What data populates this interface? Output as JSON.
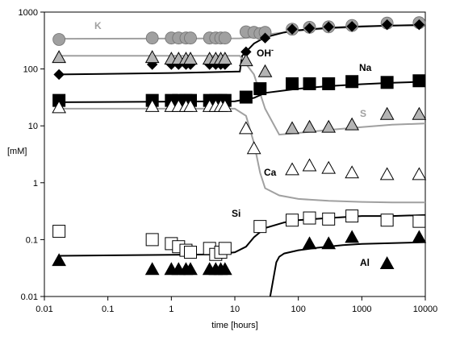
{
  "chart_data": {
    "type": "scatter",
    "title": "",
    "xlabel": "time [hours]",
    "ylabel": "[mM]",
    "xscale": "log",
    "yscale": "log",
    "xlim": [
      0.01,
      10000
    ],
    "ylim": [
      0.01,
      1000
    ],
    "x_tick_labels": [
      "0.01",
      "0.1",
      "1",
      "10",
      "100",
      "1000",
      "10000"
    ],
    "y_tick_labels": [
      "0.01",
      "0.1",
      "1",
      "10",
      "100",
      "1000"
    ],
    "grid": false,
    "legend": "none",
    "series": [
      {
        "name": "K",
        "label": "K",
        "color": "#a0a0a0",
        "marker": "circle",
        "fill": "#a0a0a0",
        "x": [
          0.017,
          0.5,
          1,
          1.3,
          1.7,
          2,
          4,
          5,
          6,
          7,
          15,
          20,
          25,
          30,
          80,
          150,
          300,
          700,
          2500,
          8000
        ],
        "y": [
          330,
          350,
          350,
          350,
          350,
          350,
          350,
          350,
          350,
          350,
          450,
          440,
          420,
          440,
          500,
          540,
          550,
          580,
          640,
          650
        ],
        "line": {
          "x": [
            0.017,
            12,
            20,
            30,
            60,
            100,
            200,
            500,
            1000,
            2000,
            5000,
            10000
          ],
          "y": [
            340,
            345,
            360,
            400,
            440,
            470,
            500,
            530,
            550,
            570,
            590,
            600
          ],
          "color": "#a0a0a0"
        }
      },
      {
        "name": "OH-",
        "label": "OH",
        "label_sup": "-",
        "color": "#000000",
        "marker": "diamond",
        "fill": "#000000",
        "x": [
          0.017,
          0.5,
          1,
          1.3,
          1.7,
          2,
          4,
          5,
          6,
          7,
          15,
          30,
          80,
          150,
          300,
          700,
          2500,
          8000
        ],
        "y": [
          80,
          120,
          120,
          120,
          120,
          120,
          120,
          120,
          120,
          120,
          200,
          350,
          500,
          520,
          550,
          560,
          600,
          600
        ],
        "line": {
          "x": [
            0.017,
            1,
            12,
            13,
            20,
            30,
            60,
            100,
            300,
            1000,
            3000,
            10000
          ],
          "y": [
            80,
            85,
            90,
            170,
            280,
            360,
            440,
            480,
            530,
            560,
            580,
            590
          ],
          "color": "#000000"
        }
      },
      {
        "name": "S",
        "label": "S",
        "color": "#a0a0a0",
        "marker": "triangle",
        "fill": "#b4b4b4",
        "x": [
          0.017,
          0.5,
          1,
          1.3,
          1.7,
          2,
          4,
          5,
          6,
          7,
          15,
          30,
          80,
          150,
          300,
          700,
          2500,
          8000
        ],
        "y": [
          160,
          160,
          150,
          150,
          150,
          150,
          150,
          150,
          150,
          150,
          140,
          90,
          9,
          9.5,
          9.5,
          10.5,
          16,
          16
        ],
        "line": {
          "x": [
            0.017,
            12,
            20,
            30,
            50,
            100,
            300,
            1000,
            3000,
            10000
          ],
          "y": [
            170,
            170,
            80,
            20,
            7,
            7.5,
            8.5,
            9.5,
            10.5,
            11
          ],
          "color": "#a0a0a0"
        }
      },
      {
        "name": "Na",
        "label": "Na",
        "color": "#000000",
        "marker": "square",
        "fill": "#000000",
        "x": [
          0.017,
          0.5,
          1,
          1.3,
          1.7,
          2,
          4,
          5,
          6,
          7,
          15,
          25,
          80,
          150,
          300,
          700,
          2500,
          8000
        ],
        "y": [
          28,
          28,
          28,
          28,
          28,
          28,
          28,
          28,
          28,
          28,
          32,
          45,
          55,
          55,
          55,
          60,
          58,
          62
        ],
        "line": {
          "x": [
            0.017,
            10,
            20,
            30,
            100,
            300,
            1000,
            3000,
            10000
          ],
          "y": [
            26,
            27,
            31,
            38,
            45,
            50,
            54,
            57,
            60
          ],
          "color": "#000000"
        }
      },
      {
        "name": "Ca",
        "label": "Ca",
        "color": "#a0a0a0",
        "marker": "triangle",
        "fill": "#ffffff",
        "x": [
          0.017,
          0.5,
          1,
          1.3,
          1.7,
          2,
          4,
          5,
          6,
          7,
          15,
          20,
          80,
          150,
          300,
          700,
          2500,
          8000
        ],
        "y": [
          21,
          22,
          22,
          22,
          22,
          22,
          22,
          22,
          22,
          22,
          9,
          4,
          1.7,
          2,
          1.8,
          1.5,
          1.4,
          1.4
        ],
        "line": {
          "x": [
            0.017,
            10,
            15,
            20,
            25,
            30,
            50,
            100,
            300,
            1000,
            3000,
            10000
          ],
          "y": [
            20,
            20,
            15,
            5,
            1.5,
            0.8,
            0.6,
            0.52,
            0.48,
            0.46,
            0.45,
            0.45
          ],
          "color": "#a0a0a0"
        }
      },
      {
        "name": "Si",
        "label": "Si",
        "color": "#000000",
        "marker": "square",
        "fill": "#ffffff",
        "x": [
          0.017,
          0.5,
          1,
          1.3,
          1.7,
          2,
          4,
          5,
          6,
          7,
          25,
          80,
          150,
          300,
          700,
          2500,
          8000
        ],
        "y": [
          0.14,
          0.1,
          0.085,
          0.075,
          0.065,
          0.06,
          0.07,
          0.055,
          0.06,
          0.07,
          0.17,
          0.22,
          0.24,
          0.23,
          0.26,
          0.22,
          0.21
        ],
        "line": {
          "x": [
            0.017,
            5,
            10,
            15,
            20,
            30,
            60,
            100,
            300,
            1000,
            3000,
            10000
          ],
          "y": [
            0.052,
            0.055,
            0.06,
            0.075,
            0.11,
            0.16,
            0.2,
            0.22,
            0.24,
            0.26,
            0.26,
            0.27
          ],
          "color": "#000000"
        }
      },
      {
        "name": "Al",
        "label": "Al",
        "color": "#000000",
        "marker": "triangle",
        "fill": "#000000",
        "x": [
          0.017,
          0.5,
          1,
          1.3,
          1.7,
          2,
          4,
          5,
          6,
          7,
          150,
          300,
          700,
          2500,
          8000
        ],
        "y": [
          0.043,
          0.03,
          0.03,
          0.03,
          0.03,
          0.03,
          0.03,
          0.03,
          0.03,
          0.03,
          0.085,
          0.085,
          0.11,
          0.038,
          0.11
        ],
        "line": {
          "x": [
            36,
            45,
            50,
            60,
            100,
            200,
            500,
            1000,
            3000,
            10000
          ],
          "y": [
            0.01,
            0.04,
            0.05,
            0.057,
            0.065,
            0.072,
            0.08,
            0.084,
            0.087,
            0.09
          ],
          "color": "#000000"
        }
      }
    ]
  }
}
